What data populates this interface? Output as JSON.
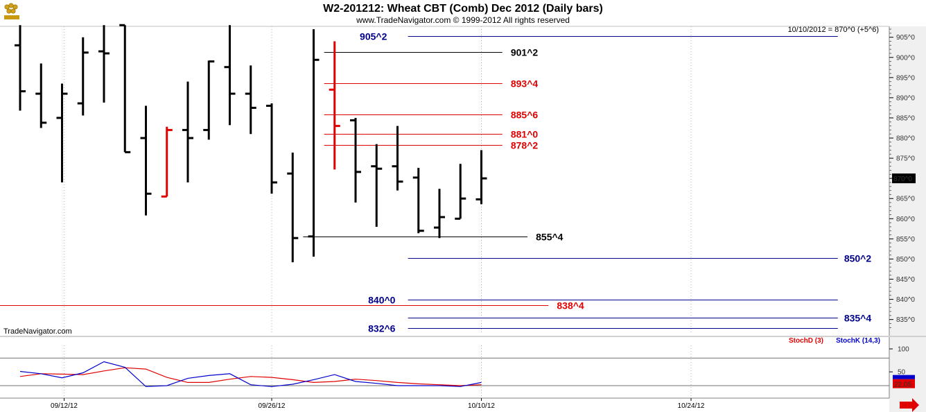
{
  "header": {
    "title": "W2-201212:  Wheat CBT (Comb) Dec 2012  (Daily bars)",
    "copyright": "www.TradeNavigator.com © 1999-2012 All rights reserved",
    "watermark": "TradeNavigator.com",
    "last_value_note": "10/10/2012 = 870^0 (+5^6)"
  },
  "colors": {
    "bar": "#000000",
    "highlight_bar": "#e00000",
    "blue_level": "#00008b",
    "red_level": "#e00000",
    "black_level": "#000000",
    "stoch_d": "#e00000",
    "stoch_k": "#0000cc",
    "grid": "#b0b0b0",
    "axis_panel": "#f0f0f0"
  },
  "icons": {
    "logo": "wheat-logo-icon",
    "scroll_arrow": "red-right-arrow-icon"
  },
  "chart_data": [
    {
      "type": "ohlc",
      "title": "W2-201212:  Wheat CBT (Comb) Dec 2012  (Daily bars)",
      "x_labels": [
        "09/12/12",
        "09/26/12",
        "10/10/12",
        "10/24/12"
      ],
      "x_label_index": [
        2.1,
        12.0,
        22.0,
        32.0
      ],
      "grid_x_index": [
        2.1,
        12.0,
        22.0,
        32.0
      ],
      "y_ticks": [
        "905^0",
        "900^0",
        "895^0",
        "890^0",
        "885^0",
        "880^0",
        "875^0",
        "870^0",
        "865^0",
        "860^0",
        "855^0",
        "850^0",
        "845^0",
        "840^0",
        "835^0"
      ],
      "y_tick_values": [
        905,
        900,
        895,
        890,
        885,
        880,
        875,
        870,
        865,
        860,
        855,
        850,
        845,
        840,
        835
      ],
      "ylim": [
        831.5,
        907.7
      ],
      "last_price_label": "870^0",
      "last_price": 870.0,
      "bars": [
        {
          "o": 903.0,
          "h": 908.0,
          "l": 886.8,
          "c": 891.6
        },
        {
          "o": 891.0,
          "h": 898.5,
          "l": 882.5,
          "c": 883.8
        },
        {
          "o": 885.0,
          "h": 893.5,
          "l": 869.0,
          "c": 891.0
        },
        {
          "o": 888.6,
          "h": 905.0,
          "l": 885.6,
          "c": 901.2
        },
        {
          "o": 901.5,
          "h": 908.0,
          "l": 888.8,
          "c": 901.0
        },
        {
          "o": 908.0,
          "h": 908.0,
          "l": 876.5,
          "c": 876.5
        },
        {
          "o": 880.0,
          "h": 888.0,
          "l": 860.8,
          "c": 866.2
        },
        {
          "o": 865.5,
          "h": 882.8,
          "l": 865.5,
          "c": 882.0,
          "hl": true
        },
        {
          "o": 882.0,
          "h": 894.0,
          "l": 869.0,
          "c": 880.0
        },
        {
          "o": 882.0,
          "h": 899.2,
          "l": 879.6,
          "c": 899.0
        },
        {
          "o": 897.6,
          "h": 908.0,
          "l": 883.2,
          "c": 891.0
        },
        {
          "o": 891.0,
          "h": 898.0,
          "l": 881.0,
          "c": 887.5
        },
        {
          "o": 888.0,
          "h": 888.6,
          "l": 866.2,
          "c": 869.0
        },
        {
          "o": 871.2,
          "h": 876.4,
          "l": 849.2,
          "c": 855.2
        },
        {
          "o": 855.6,
          "h": 907.0,
          "l": 850.6,
          "c": 899.4
        },
        {
          "o": 892.0,
          "h": 904.0,
          "l": 872.2,
          "c": 883.0,
          "hl": true
        },
        {
          "o": 884.4,
          "h": 885.0,
          "l": 864.0,
          "c": 871.6
        },
        {
          "o": 873.0,
          "h": 878.5,
          "l": 858.0,
          "c": 872.4
        },
        {
          "o": 873.0,
          "h": 883.0,
          "l": 867.0,
          "c": 869.2
        },
        {
          "o": 870.2,
          "h": 872.6,
          "l": 856.4,
          "c": 857.0
        },
        {
          "o": 857.8,
          "h": 867.4,
          "l": 855.2,
          "c": 860.4
        },
        {
          "o": 860.0,
          "h": 873.6,
          "l": 860.0,
          "c": 865.0
        },
        {
          "o": 864.8,
          "h": 877.0,
          "l": 863.6,
          "c": 870.0
        }
      ],
      "levels": [
        {
          "label": "905^2",
          "value": 905.3,
          "color": "blue",
          "x_from": 18.5,
          "x_to": 39.0,
          "label_pos": "left-of-line",
          "label_at": 17.5
        },
        {
          "label": "901^2",
          "value": 901.3,
          "color": "black",
          "x_from": 14.5,
          "x_to": 23.0,
          "label_pos": "right-of-line",
          "label_at": 23.4
        },
        {
          "label": "893^4",
          "value": 893.6,
          "color": "red",
          "x_from": 14.5,
          "x_to": 23.0,
          "label_pos": "right-of-line",
          "label_at": 23.4
        },
        {
          "label": "885^6",
          "value": 885.8,
          "color": "red",
          "x_from": 14.5,
          "x_to": 23.0,
          "label_pos": "right-of-line",
          "label_at": 23.4
        },
        {
          "label": "881^0",
          "value": 881.0,
          "color": "red",
          "x_from": 14.5,
          "x_to": 23.0,
          "label_pos": "right-of-line",
          "label_at": 23.4
        },
        {
          "label": "878^2",
          "value": 878.3,
          "color": "red",
          "x_from": 14.5,
          "x_to": 23.0,
          "label_pos": "right-of-line",
          "label_at": 23.4
        },
        {
          "label": "855^4",
          "value": 855.5,
          "color": "black",
          "x_from": 13.5,
          "x_to": 24.2,
          "label_pos": "right-of-line",
          "label_at": 24.6
        },
        {
          "label": "850^2",
          "value": 850.3,
          "color": "blue",
          "x_from": 18.5,
          "x_to": 39.0,
          "label_pos": "right-of-line",
          "label_at": 39.3
        },
        {
          "label": "840^0",
          "value": 840.0,
          "color": "blue",
          "x_from": 18.5,
          "x_to": 39.0,
          "label_pos": "left-of-line",
          "label_at": 17.9
        },
        {
          "label": "838^4",
          "value": 838.6,
          "color": "red",
          "x_from": -1.0,
          "x_to": 25.2,
          "label_pos": "right-of-line",
          "label_at": 25.6
        },
        {
          "label": "835^4",
          "value": 835.5,
          "color": "blue",
          "x_from": 18.5,
          "x_to": 39.0,
          "label_pos": "right-of-line",
          "label_at": 39.3
        },
        {
          "label": "832^6",
          "value": 832.8,
          "color": "blue",
          "x_from": 18.5,
          "x_to": 39.0,
          "label_pos": "left-of-line",
          "label_at": 17.9
        }
      ]
    },
    {
      "type": "line",
      "ylim": [
        0,
        100
      ],
      "y_ticks": [
        "100",
        "50"
      ],
      "y_tick_values": [
        100,
        50
      ],
      "ref_lines": [
        80,
        20
      ],
      "last_value_label": "22.05",
      "last_value": 22.05,
      "series": [
        {
          "name": "StochD (3)",
          "color": "#e00000",
          "values": [
            40,
            46,
            45,
            44,
            52,
            59,
            56,
            38,
            27,
            27,
            34,
            40,
            38,
            33,
            27,
            29,
            34,
            31,
            27,
            24,
            22,
            20,
            22
          ]
        },
        {
          "name": "StochK (14,3)",
          "color": "#0000cc",
          "values": [
            51,
            46,
            37,
            48,
            72,
            60,
            18,
            20,
            36,
            42,
            46,
            22,
            18,
            23,
            33,
            44,
            29,
            25,
            20,
            20,
            20,
            18,
            27
          ]
        }
      ]
    }
  ]
}
